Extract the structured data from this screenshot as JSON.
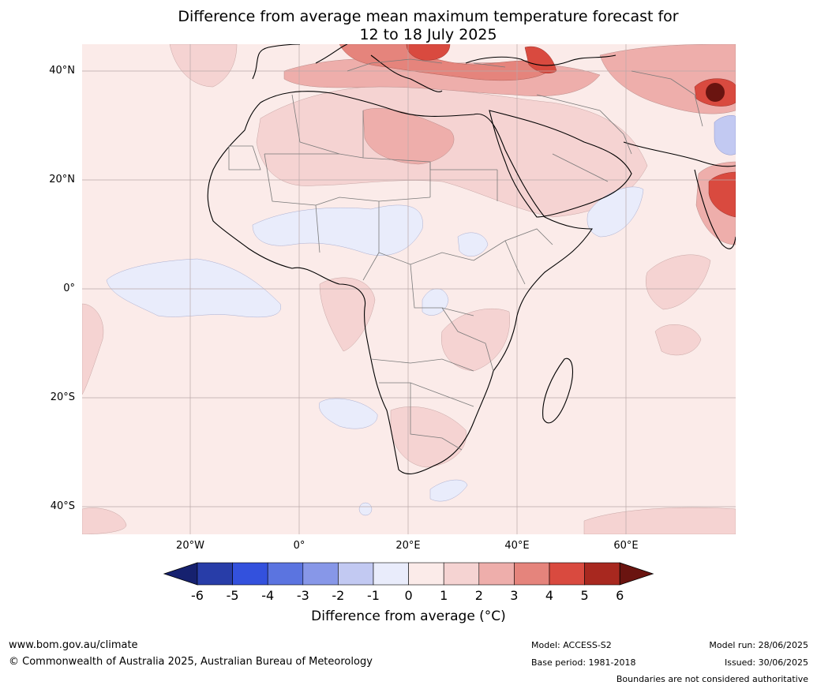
{
  "title": {
    "line1": "Difference from average mean maximum temperature forecast for",
    "line2": "12 to 18 July 2025"
  },
  "map": {
    "region": "Africa, Europe and Middle East",
    "lat_labels": [
      "40°N",
      "20°N",
      "0°",
      "20°S",
      "40°S"
    ],
    "lon_labels": [
      "20°W",
      "0°",
      "20°E",
      "40°E",
      "60°E"
    ]
  },
  "colorbar": {
    "ticks": [
      "-6",
      "-5",
      "-4",
      "-3",
      "-2",
      "-1",
      "0",
      "1",
      "2",
      "3",
      "4",
      "5",
      "6"
    ],
    "colors": [
      "#16216f",
      "#283da8",
      "#3351dd",
      "#5b74e0",
      "#8797e8",
      "#c2c9f2",
      "#e9ecfb",
      "#fbebe9",
      "#f5d3d2",
      "#eeaeab",
      "#e5847c",
      "#d94a3f",
      "#a8281f",
      "#6a1410"
    ],
    "label": "Difference from average (°C)",
    "label_text": "Difference from average ( ",
    "label_unit": "°C)"
  },
  "footer": {
    "website": "www.bom.gov.au/climate",
    "copyright": "© Commonwealth of Australia 2025, Australian Bureau of Meteorology",
    "model": "Model: ACCESS-S2",
    "base_period": "Base period: 1981-2018",
    "model_run": "Model run: 28/06/2025",
    "issued": "Issued: 30/06/2025",
    "disclaimer": "Boundaries are not considered authoritative"
  }
}
